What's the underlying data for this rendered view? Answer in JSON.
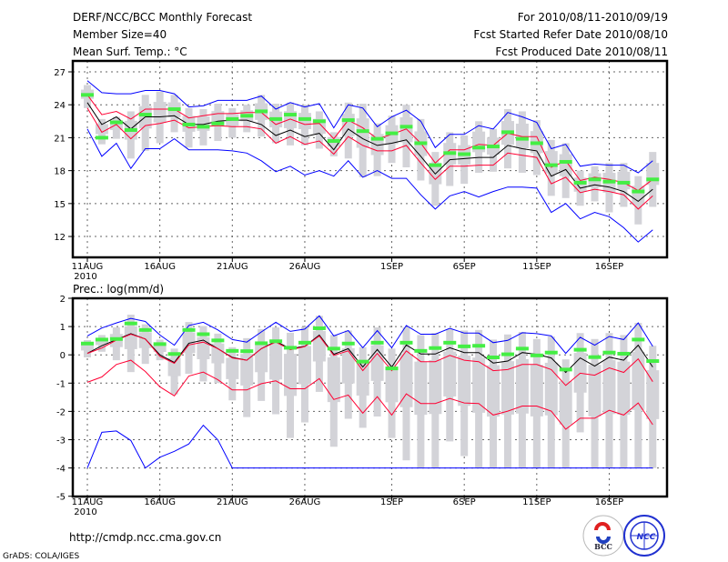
{
  "header": {
    "title": "DERF/NCC/BCC Monthly Forecast",
    "member_size": "Member Size=40",
    "variable": "Mean Surf. Temp.: °C",
    "period": "For 2010/08/11-2010/09/19",
    "started": "Fcst Started Refer Date 2010/08/10",
    "produced": "Fcst Produced Date 2010/08/11"
  },
  "footer": {
    "url": "http://cmdp.ncc.cma.gov.cn",
    "grads": "GrADS: COLA/IGES",
    "logo_bcc": "BCC",
    "logo_ncc": "NCC"
  },
  "colors": {
    "max_min": "#0000ff",
    "spread": "#ff0033",
    "mean": "#000000",
    "observed": "#44ee44",
    "ensemble": "#d3d3d8"
  },
  "chart_data": [
    {
      "type": "line",
      "title": "Mean Surf. Temp.: °C",
      "x_start": "2010-08-11",
      "n_days": 40,
      "xticks": [
        {
          "day": 0,
          "label": "11AUG"
        },
        {
          "day": 5,
          "label": "16AUG"
        },
        {
          "day": 10,
          "label": "21AUG"
        },
        {
          "day": 15,
          "label": "26AUG"
        },
        {
          "day": 21,
          "label": "1SEP"
        },
        {
          "day": 26,
          "label": "6SEP"
        },
        {
          "day": 31,
          "label": "11SEP"
        },
        {
          "day": 36,
          "label": "16SEP"
        }
      ],
      "year_label": "2010",
      "yticks": [
        "27",
        "24",
        "21",
        "18",
        "15",
        "12"
      ],
      "ylim": [
        10.5,
        28
      ],
      "grid": true,
      "series": [
        {
          "name": "max",
          "color": "blue",
          "values": [
            26.2,
            25.1,
            25.0,
            25.0,
            25.3,
            25.3,
            25.0,
            23.8,
            23.9,
            24.4,
            24.4,
            24.4,
            24.8,
            23.6,
            24.2,
            23.8,
            24.1,
            21.9,
            24.0,
            23.7,
            22.0,
            22.9,
            23.5,
            22.5,
            20.1,
            21.3,
            21.3,
            22.1,
            21.8,
            23.3,
            22.9,
            22.4,
            20.0,
            20.4,
            18.4,
            18.6,
            18.5,
            18.5,
            17.8,
            18.9
          ]
        },
        {
          "name": "upper",
          "color": "red",
          "values": [
            24.9,
            23.1,
            23.4,
            22.7,
            23.6,
            23.6,
            23.6,
            22.8,
            23.0,
            23.2,
            23.2,
            23.3,
            23.3,
            22.2,
            22.7,
            22.2,
            22.3,
            20.9,
            22.6,
            21.9,
            20.9,
            21.3,
            21.8,
            20.5,
            18.7,
            19.9,
            19.9,
            20.4,
            20.3,
            21.4,
            21.1,
            21.1,
            18.3,
            18.9,
            17.1,
            17.4,
            17.2,
            16.9,
            16.2,
            17.2
          ]
        },
        {
          "name": "mean",
          "color": "black",
          "values": [
            24.2,
            22.2,
            22.9,
            21.8,
            22.9,
            22.9,
            23.0,
            22.2,
            22.2,
            22.5,
            22.6,
            22.6,
            22.2,
            21.2,
            21.7,
            21.1,
            21.4,
            19.9,
            21.8,
            20.9,
            20.3,
            20.5,
            20.8,
            19.3,
            17.7,
            19.0,
            19.1,
            19.2,
            19.2,
            20.3,
            20.0,
            19.8,
            17.5,
            18.1,
            16.4,
            16.7,
            16.5,
            16.1,
            15.2,
            16.3
          ]
        },
        {
          "name": "lower",
          "color": "red",
          "values": [
            23.7,
            21.5,
            22.2,
            20.9,
            22.1,
            22.3,
            22.6,
            21.9,
            22.0,
            22.1,
            22.0,
            22.0,
            21.8,
            20.5,
            21.1,
            20.4,
            20.7,
            19.5,
            21.1,
            20.3,
            19.8,
            19.8,
            20.3,
            18.7,
            17.2,
            18.4,
            18.4,
            18.5,
            18.5,
            19.6,
            19.4,
            19.2,
            16.8,
            17.4,
            16.0,
            16.3,
            16.1,
            15.8,
            14.5,
            15.7
          ]
        },
        {
          "name": "min",
          "color": "blue",
          "values": [
            21.8,
            19.3,
            20.5,
            18.2,
            20.0,
            20.0,
            20.9,
            19.9,
            19.9,
            19.9,
            19.8,
            19.6,
            18.9,
            17.9,
            18.4,
            17.6,
            18.0,
            17.5,
            18.9,
            17.4,
            18.0,
            17.3,
            17.3,
            15.8,
            14.5,
            15.7,
            16.1,
            15.6,
            16.1,
            16.5,
            16.5,
            16.4,
            14.2,
            15.0,
            13.6,
            14.2,
            13.8,
            12.8,
            11.5,
            12.6
          ]
        },
        {
          "name": "observed",
          "color": "green",
          "values": [
            24.9,
            21.0,
            22.4,
            21.7,
            23.1,
            null,
            23.6,
            22.2,
            22.0,
            22.3,
            22.7,
            23.0,
            23.4,
            22.7,
            23.1,
            22.7,
            22.5,
            20.7,
            22.6,
            21.6,
            20.9,
            21.4,
            22.0,
            20.5,
            18.5,
            19.6,
            19.5,
            20.1,
            20.2,
            21.5,
            20.9,
            20.5,
            18.5,
            18.8,
            16.9,
            17.2,
            17.0,
            16.9,
            16.1,
            17.2
          ]
        }
      ],
      "ensemble_range": {
        "high": [
          25.8,
          22.7,
          22.9,
          23.4,
          24.9,
          25.2,
          24.9,
          23.7,
          23.6,
          24.1,
          23.7,
          24.0,
          24.9,
          24.1,
          24.2,
          24.0,
          23.4,
          21.5,
          24.2,
          24.1,
          22.3,
          23.0,
          24.0,
          22.7,
          19.7,
          21.5,
          21.2,
          22.5,
          21.8,
          23.6,
          23.4,
          22.6,
          20.8,
          20.5,
          18.0,
          18.4,
          18.7,
          18.7,
          17.5,
          19.7
        ],
        "low": [
          23.7,
          20.4,
          20.9,
          19.1,
          19.8,
          20.5,
          21.5,
          20.1,
          20.3,
          20.7,
          21.0,
          21.5,
          21.1,
          20.5,
          20.3,
          20.3,
          20.0,
          19.3,
          19.1,
          17.4,
          17.5,
          18.7,
          18.3,
          17.1,
          14.8,
          16.6,
          16.8,
          17.8,
          17.9,
          18.2,
          17.8,
          17.6,
          15.7,
          15.5,
          14.8,
          15.2,
          14.2,
          14.7,
          13.1,
          14.7
        ]
      }
    },
    {
      "type": "line",
      "title": "Prec.: log(mm/d)",
      "x_start": "2010-08-11",
      "n_days": 40,
      "xticks": [
        {
          "day": 0,
          "label": "11AUG"
        },
        {
          "day": 5,
          "label": "16AUG"
        },
        {
          "day": 10,
          "label": "21AUG"
        },
        {
          "day": 15,
          "label": "26AUG"
        },
        {
          "day": 21,
          "label": "1SEP"
        },
        {
          "day": 26,
          "label": "6SEP"
        },
        {
          "day": 31,
          "label": "11SEP"
        },
        {
          "day": 36,
          "label": "16SEP"
        }
      ],
      "year_label": "2010",
      "yticks": [
        "2",
        "1",
        "0",
        "-1",
        "-2",
        "-3",
        "-4",
        "-5"
      ],
      "ylim": [
        -5,
        2
      ],
      "grid": true,
      "series": [
        {
          "name": "max",
          "color": "blue",
          "values": [
            0.67,
            0.95,
            1.13,
            1.29,
            1.18,
            0.7,
            0.34,
            1.04,
            1.15,
            0.88,
            0.54,
            0.45,
            0.81,
            1.15,
            0.83,
            0.91,
            1.38,
            0.67,
            0.86,
            0.25,
            0.86,
            0.25,
            1.04,
            0.73,
            0.73,
            0.94,
            0.77,
            0.77,
            0.43,
            0.51,
            0.78,
            0.75,
            0.67,
            0.05,
            0.62,
            0.34,
            0.65,
            0.54,
            1.13,
            0.3
          ]
        },
        {
          "name": "mean",
          "color": "black",
          "values": [
            0.05,
            0.32,
            0.54,
            0.75,
            0.56,
            0.0,
            -0.27,
            0.41,
            0.52,
            0.22,
            -0.09,
            -0.19,
            0.22,
            0.48,
            0.22,
            0.3,
            0.7,
            0.02,
            0.22,
            -0.43,
            0.19,
            -0.43,
            0.35,
            0.03,
            0.03,
            0.25,
            0.08,
            0.08,
            -0.29,
            -0.22,
            0.08,
            0.02,
            -0.11,
            -0.62,
            -0.11,
            -0.4,
            -0.08,
            -0.19,
            0.34,
            -0.43
          ]
        },
        {
          "name": "upper",
          "color": "red",
          "values": [
            0.05,
            0.24,
            0.52,
            0.73,
            0.56,
            -0.05,
            -0.3,
            0.35,
            0.45,
            0.22,
            -0.11,
            -0.19,
            0.22,
            0.45,
            0.18,
            0.29,
            0.67,
            -0.02,
            0.14,
            -0.56,
            0.05,
            -0.56,
            0.14,
            -0.24,
            -0.24,
            -0.02,
            -0.19,
            -0.24,
            -0.56,
            -0.52,
            -0.34,
            -0.34,
            -0.52,
            -1.08,
            -0.65,
            -0.72,
            -0.46,
            -0.62,
            -0.14,
            -0.95
          ]
        },
        {
          "name": "lower",
          "color": "red",
          "values": [
            -0.97,
            -0.78,
            -0.34,
            -0.19,
            -0.59,
            -1.13,
            -1.45,
            -0.75,
            -0.61,
            -0.88,
            -1.24,
            -1.24,
            -1.02,
            -0.92,
            -1.2,
            -1.2,
            -0.84,
            -1.58,
            -1.42,
            -2.06,
            -1.48,
            -2.13,
            -1.38,
            -1.72,
            -1.72,
            -1.54,
            -1.7,
            -1.72,
            -2.13,
            -1.99,
            -1.81,
            -1.81,
            -1.99,
            -2.63,
            -2.24,
            -2.24,
            -1.96,
            -2.13,
            -1.7,
            -2.47
          ]
        },
        {
          "name": "min",
          "color": "blue",
          "values": [
            -4.0,
            -2.74,
            -2.69,
            -3.03,
            -4.0,
            -3.62,
            -3.41,
            -3.15,
            -2.49,
            -3.01,
            -4.0,
            -4.0,
            -4.0,
            -4.0,
            -4.0,
            -4.0,
            -4.0,
            -4.0,
            -4.0,
            -4.0,
            -4.0,
            -4.0,
            -4.0,
            -4.0,
            -4.0,
            -4.0,
            -4.0,
            -4.0,
            -4.0,
            -4.0,
            -4.0,
            -4.0,
            -4.0,
            -4.0,
            -4.0,
            -4.0,
            -4.0,
            -4.0,
            -4.0,
            -4.0
          ]
        },
        {
          "name": "observed",
          "color": "green",
          "values": [
            0.4,
            0.54,
            0.56,
            1.11,
            0.88,
            0.38,
            0.03,
            0.88,
            0.73,
            0.51,
            0.14,
            0.13,
            0.41,
            0.48,
            0.25,
            0.43,
            0.94,
            0.22,
            0.4,
            -0.24,
            0.43,
            -0.48,
            0.43,
            0.14,
            0.24,
            0.43,
            0.3,
            0.32,
            -0.09,
            0.02,
            0.22,
            -0.02,
            0.08,
            -0.52,
            0.18,
            -0.08,
            0.08,
            0.04,
            0.54,
            -0.22
          ]
        }
      ],
      "ensemble_range": {
        "high": [
          0.52,
          0.7,
          0.97,
          1.42,
          1.08,
          0.54,
          0.22,
          1.16,
          1.02,
          0.75,
          0.27,
          0.59,
          0.91,
          0.97,
          0.78,
          0.99,
          1.38,
          0.7,
          0.86,
          0.27,
          0.97,
          0.22,
          0.97,
          0.7,
          0.77,
          0.91,
          0.86,
          0.88,
          0.54,
          0.72,
          0.81,
          0.56,
          0.65,
          -0.16,
          0.77,
          0.56,
          0.77,
          0.7,
          1.13,
          0.32
        ],
        "low": [
          -0.09,
          0.11,
          -0.19,
          -0.61,
          -0.32,
          -0.19,
          -1.4,
          -0.67,
          -0.94,
          -1.0,
          -1.61,
          -2.2,
          -1.63,
          -2.1,
          -2.94,
          -2.39,
          -1.31,
          -3.25,
          -2.26,
          -2.58,
          -2.18,
          -2.94,
          -3.73,
          -4.0,
          -4.0,
          -3.06,
          -3.58,
          -4.0,
          -4.0,
          -4.0,
          -4.0,
          -4.0,
          -4.0,
          -4.0,
          -2.74,
          -4.0,
          -4.0,
          -4.0,
          -4.0,
          -4.0
        ]
      }
    }
  ]
}
